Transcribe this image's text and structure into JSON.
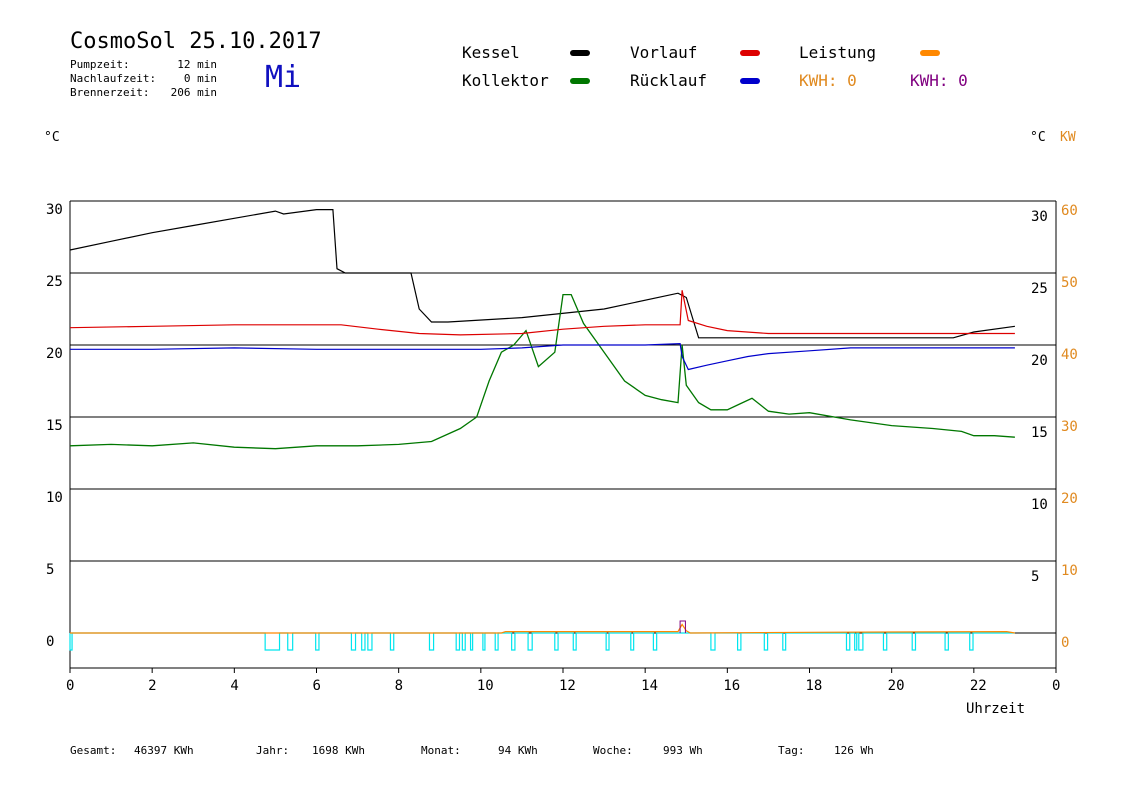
{
  "header": {
    "title": "CosmoSol 25.10.2017",
    "day": "Mi",
    "stats": [
      {
        "label": "Pumpzeit:",
        "value": "12 min"
      },
      {
        "label": "Nachlaufzeit:",
        "value": "0 min"
      },
      {
        "label": "Brennerzeit:",
        "value": "206 min"
      }
    ]
  },
  "legend": {
    "kessel": "Kessel",
    "kollektor": "Kollektor",
    "vorlauf": "Vorlauf",
    "ruecklauf": "Rücklauf",
    "leistung": "Leistung",
    "kwh1": "KWH: 0",
    "kwh2": "KWH: 0"
  },
  "colors": {
    "kessel": "#000000",
    "kollektor": "#007700",
    "vorlauf": "#dd0000",
    "ruecklauf": "#0000cc",
    "leistung": "#ff8800",
    "kwh2": "#800080",
    "pump": "#00e5ee"
  },
  "axes": {
    "left_unit": "°C",
    "right_unit": "°C",
    "right2_unit": "KW",
    "xlabel": "Uhrzeit"
  },
  "footer": {
    "gesamt_label": "Gesamt:",
    "gesamt_value": "46397 KWh",
    "jahr_label": "Jahr:",
    "jahr_value": "1698 KWh",
    "monat_label": "Monat:",
    "monat_value": "94 KWh",
    "woche_label": "Woche:",
    "woche_value": "993 Wh",
    "tag_label": "Tag:",
    "tag_value": "126 Wh"
  },
  "chart_data": {
    "type": "line",
    "title": "CosmoSol 25.10.2017",
    "xlabel": "Uhrzeit",
    "ylabel": "°C",
    "xlim": [
      0,
      24
    ],
    "ylim": [
      -2,
      31
    ],
    "y2lim": [
      -4,
      62
    ],
    "grid": true,
    "x_ticks": [
      "0",
      "2",
      "4",
      "6",
      "8",
      "10",
      "12",
      "14",
      "16",
      "18",
      "20",
      "22",
      "0"
    ],
    "y_ticks_left": [
      "30",
      "25",
      "20",
      "15",
      "10",
      "5",
      "0"
    ],
    "y_ticks_right": [
      "30",
      "25",
      "20",
      "15",
      "10",
      "5"
    ],
    "y_ticks_right2": [
      "60",
      "50",
      "40",
      "30",
      "20",
      "10",
      "0"
    ],
    "series": [
      {
        "name": "Kessel",
        "color": "#000000",
        "x": [
          0,
          1,
          2,
          3,
          4,
          5,
          5.2,
          6,
          6.4,
          6.5,
          6.7,
          8.3,
          8.5,
          8.8,
          9.2,
          11,
          13,
          14.8,
          15,
          15.3,
          16,
          18,
          21.5,
          22,
          23
        ],
        "y": [
          26.6,
          27.2,
          27.8,
          28.3,
          28.8,
          29.3,
          29.1,
          29.4,
          29.4,
          25.3,
          25.0,
          25.0,
          22.5,
          21.6,
          21.6,
          21.9,
          22.5,
          23.6,
          23.3,
          20.5,
          20.5,
          20.5,
          20.5,
          20.9,
          21.3
        ]
      },
      {
        "name": "Kollektor",
        "color": "#007700",
        "x": [
          0,
          1,
          2,
          3,
          4,
          5,
          6,
          7,
          8,
          8.8,
          9.5,
          9.9,
          10.2,
          10.5,
          10.8,
          11.1,
          11.4,
          11.8,
          12.0,
          12.2,
          12.5,
          13,
          13.5,
          14,
          14.4,
          14.8,
          14.9,
          15.0,
          15.3,
          15.6,
          16,
          16.3,
          16.6,
          17,
          17.5,
          18,
          19,
          20,
          21,
          21.7,
          22,
          22.5,
          23
        ],
        "y": [
          13.0,
          13.1,
          13.0,
          13.2,
          12.9,
          12.8,
          13.0,
          13.0,
          13.1,
          13.3,
          14.2,
          15.0,
          17.5,
          19.5,
          20.0,
          21.0,
          18.5,
          19.5,
          23.5,
          23.5,
          21.5,
          19.5,
          17.5,
          16.5,
          16.2,
          16.0,
          20.0,
          17.2,
          16.0,
          15.5,
          15.5,
          15.9,
          16.3,
          15.4,
          15.2,
          15.3,
          14.8,
          14.4,
          14.2,
          14.0,
          13.7,
          13.7,
          13.6
        ]
      },
      {
        "name": "Vorlauf",
        "color": "#dd0000",
        "x": [
          0,
          2,
          4,
          6.6,
          7.5,
          8.5,
          9.5,
          11,
          12,
          13,
          14,
          14.85,
          14.9,
          15.05,
          15.5,
          16,
          17,
          18,
          20,
          22,
          23
        ],
        "y": [
          21.2,
          21.3,
          21.4,
          21.4,
          21.1,
          20.8,
          20.7,
          20.8,
          21.1,
          21.3,
          21.4,
          21.4,
          23.8,
          21.7,
          21.3,
          21.0,
          20.8,
          20.8,
          20.8,
          20.8,
          20.8
        ]
      },
      {
        "name": "Rücklauf",
        "color": "#0000cc",
        "x": [
          0,
          2,
          4,
          6,
          8,
          10,
          11,
          12,
          13,
          14,
          14.85,
          14.9,
          15.05,
          15.5,
          16,
          16.5,
          17,
          18,
          19,
          20,
          21,
          22,
          23
        ],
        "y": [
          19.7,
          19.7,
          19.8,
          19.7,
          19.7,
          19.7,
          19.8,
          20.0,
          20.0,
          20.0,
          20.1,
          19.2,
          18.3,
          18.6,
          18.9,
          19.2,
          19.4,
          19.6,
          19.8,
          19.8,
          19.8,
          19.8,
          19.8
        ]
      },
      {
        "name": "Leistung",
        "color": "#ff8800",
        "x": [
          0,
          10.5,
          10.6,
          14.8,
          14.9,
          15.0,
          15.1,
          18,
          22.8,
          23
        ],
        "y": [
          0,
          0,
          0.2,
          0.2,
          1.2,
          0.3,
          0,
          0.1,
          0.2,
          0
        ]
      }
    ],
    "pump_intervals": [
      [
        0,
        0.05
      ],
      [
        4.75,
        5.1
      ],
      [
        5.3,
        5.42
      ],
      [
        5.98,
        6.06
      ],
      [
        6.85,
        6.95
      ],
      [
        7.1,
        7.18
      ],
      [
        7.25,
        7.35
      ],
      [
        7.8,
        7.88
      ],
      [
        8.75,
        8.85
      ],
      [
        9.4,
        9.48
      ],
      [
        9.55,
        9.62
      ],
      [
        9.75,
        9.8
      ],
      [
        10.05,
        10.1
      ],
      [
        10.35,
        10.42
      ],
      [
        10.75,
        10.83
      ],
      [
        11.15,
        11.25
      ],
      [
        11.8,
        11.88
      ],
      [
        12.25,
        12.32
      ],
      [
        13.05,
        13.12
      ],
      [
        13.65,
        13.72
      ],
      [
        14.2,
        14.28
      ],
      [
        15.6,
        15.7
      ],
      [
        16.25,
        16.33
      ],
      [
        16.9,
        16.98
      ],
      [
        17.35,
        17.42
      ],
      [
        18.9,
        18.98
      ],
      [
        19.1,
        19.15
      ],
      [
        19.2,
        19.3
      ],
      [
        19.8,
        19.88
      ],
      [
        20.5,
        20.58
      ],
      [
        21.3,
        21.38
      ],
      [
        21.9,
        21.98
      ]
    ]
  }
}
